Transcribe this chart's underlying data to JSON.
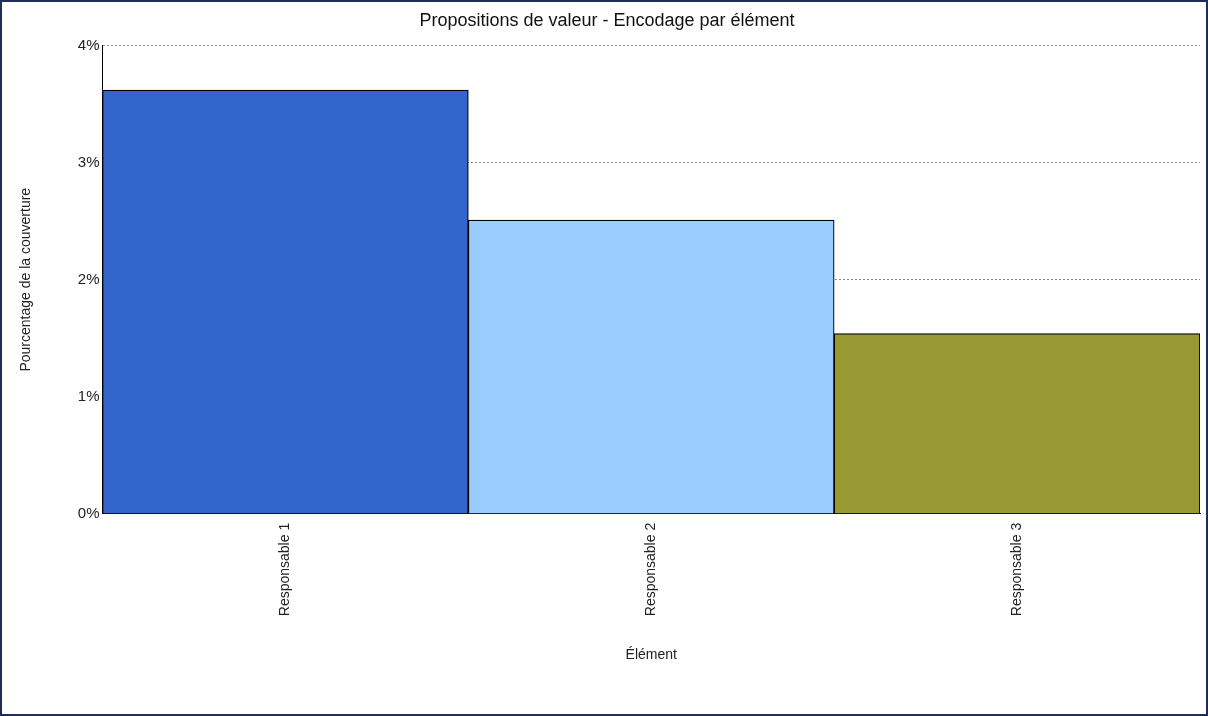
{
  "chart_data": {
    "type": "bar",
    "title": "Propositions de valeur - Encodage par élément",
    "xlabel": "Élément",
    "ylabel": "Pourcentage de la couverture",
    "categories": [
      "Responsable 1",
      "Responsable 2",
      "Responsable 3"
    ],
    "values": [
      3.62,
      2.51,
      1.54
    ],
    "colors": [
      "#3366cc",
      "#99ccff",
      "#999933"
    ],
    "ylim": [
      0,
      4
    ],
    "yticks": [
      {
        "value": 0,
        "label": "0%"
      },
      {
        "value": 1,
        "label": "1%"
      },
      {
        "value": 2,
        "label": "2%"
      },
      {
        "value": 3,
        "label": "3%"
      },
      {
        "value": 4,
        "label": "4%"
      }
    ],
    "grid": "y"
  }
}
